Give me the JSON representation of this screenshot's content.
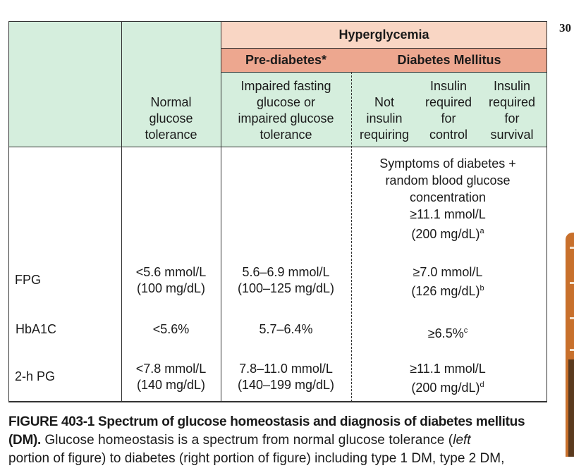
{
  "page_number": "30",
  "header": {
    "hyperglycemia": "Hyperglycemia",
    "prediabetes": "Pre-diabetes*",
    "diabetes": "Diabetes Mellitus"
  },
  "columns": {
    "normal": [
      "Normal",
      "glucose",
      "tolerance"
    ],
    "impaired": [
      "Impaired fasting",
      "glucose or",
      "impaired glucose",
      "tolerance"
    ],
    "not_insulin": [
      "Not",
      "insulin",
      "requiring"
    ],
    "insulin_control": [
      "Insulin",
      "required",
      "for",
      "control"
    ],
    "insulin_survival": [
      "Insulin",
      "required",
      "for",
      "survival"
    ]
  },
  "symptoms": {
    "lines": [
      "Symptoms of diabetes +",
      "random blood glucose",
      "concentration",
      "≥11.1 mmol/L"
    ],
    "last": "(200 mg/dL)",
    "sup": "a"
  },
  "rows": {
    "fpg": {
      "label": "FPG",
      "normal": [
        "<5.6 mmol/L",
        "(100 mg/dL)"
      ],
      "pre": [
        "5.6–6.9 mmol/L",
        "(100–125 mg/dL)"
      ],
      "dm1": "≥7.0 mmol/L",
      "dm2": "(126 mg/dL)",
      "sup": "b"
    },
    "hba1c": {
      "label": "HbA1C",
      "normal": "<5.6%",
      "pre": "5.7–6.4%",
      "dm": "≥6.5%",
      "sup": "c"
    },
    "pg2h": {
      "label": "2-h PG",
      "normal": [
        "<7.8 mmol/L",
        "(140 mg/dL)"
      ],
      "pre": [
        "7.8–11.0 mmol/L",
        "(140–199 mg/dL)"
      ],
      "dm1": "≥11.1 mmol/L",
      "dm2": "(200 mg/dL)",
      "sup": "d"
    }
  },
  "caption": {
    "title": "FIGURE 403-1  Spectrum of glucose homeostasis and diagnosis of diabetes mellitus (DM).",
    "body_1": " Glucose homeostasis is a spectrum from normal glucose tolerance (",
    "body_italic_1": "left",
    "body_line2": "portion of figure) to diabetes (right portion of figure) including type 1 DM, type 2 DM,"
  },
  "colors": {
    "green": "#d5eedd",
    "peach": "#f9d6c4",
    "salmon": "#eda78f",
    "side_tab": "#c8702c"
  }
}
